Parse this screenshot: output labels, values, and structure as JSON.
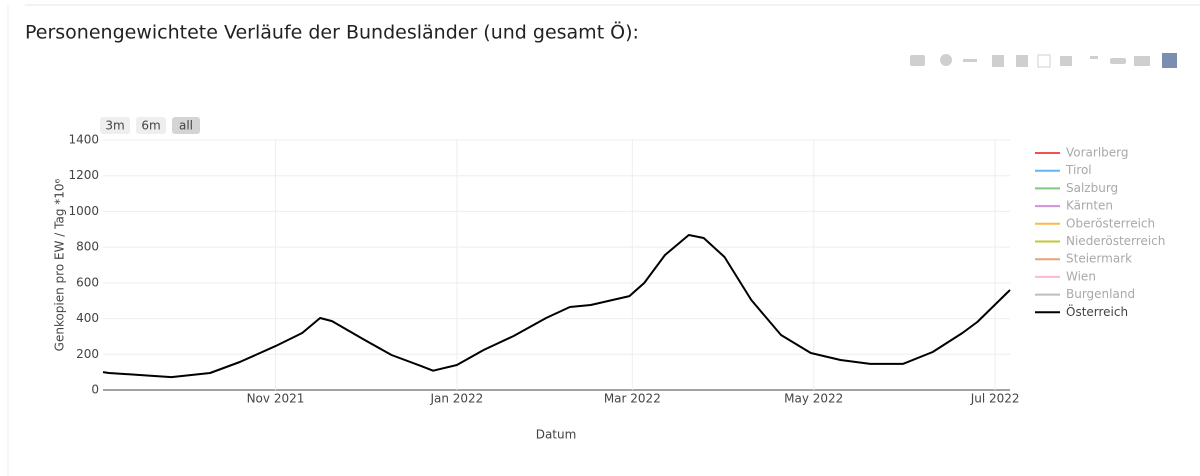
{
  "chart_data": {
    "type": "line",
    "title": "Personengewichtete Verläufe der Bundesländer (und gesamt Ö):",
    "x_label": "Datum",
    "y_label": "Genkopien pro EW / Tag *10⁶",
    "range_buttons": [
      "3m",
      "6m",
      "all"
    ],
    "x": [
      "2021-09-04",
      "2021-09-06",
      "2021-09-20",
      "2021-09-27",
      "2021-10-10",
      "2021-10-20",
      "2021-11-01",
      "2021-11-10",
      "2021-11-16",
      "2021-11-20",
      "2021-12-01",
      "2021-12-10",
      "2021-12-20",
      "2021-12-24",
      "2022-01-01",
      "2022-01-10",
      "2022-01-20",
      "2022-01-31",
      "2022-02-08",
      "2022-02-15",
      "2022-02-28",
      "2022-03-05",
      "2022-03-12",
      "2022-03-20",
      "2022-03-25",
      "2022-04-01",
      "2022-04-10",
      "2022-04-20",
      "2022-04-30",
      "2022-05-10",
      "2022-05-20",
      "2022-05-31",
      "2022-06-10",
      "2022-06-20",
      "2022-06-25",
      "2022-07-06"
    ],
    "xlim": [
      "2021-09-04",
      "2022-07-06"
    ],
    "xticks": [
      {
        "value": "2021-11-01",
        "label": "Nov 2021"
      },
      {
        "value": "2022-01-01",
        "label": "Jan 2022"
      },
      {
        "value": "2022-03-01",
        "label": "Mar 2022"
      },
      {
        "value": "2022-05-01",
        "label": "May 2022"
      },
      {
        "value": "2022-07-01",
        "label": "Jul 2022"
      }
    ],
    "ylim": [
      0,
      1400
    ],
    "yticks": [
      0,
      200,
      400,
      600,
      800,
      1000,
      1200,
      1400
    ],
    "grid": true,
    "legend": "right",
    "series": [
      {
        "name": "Vorarlberg",
        "color": "#ef5350",
        "visible": false
      },
      {
        "name": "Tirol",
        "color": "#64b5f6",
        "visible": false
      },
      {
        "name": "Salzburg",
        "color": "#81c784",
        "visible": false
      },
      {
        "name": "Kärnten",
        "color": "#ce93d8",
        "visible": false
      },
      {
        "name": "Oberösterreich",
        "color": "#ffb74d",
        "visible": false
      },
      {
        "name": "Niederösterreich",
        "color": "#c0ca33",
        "visible": false
      },
      {
        "name": "Steiermark",
        "color": "#e8a07a",
        "visible": false
      },
      {
        "name": "Wien",
        "color": "#f8bbd0",
        "visible": false
      },
      {
        "name": "Burgenland",
        "color": "#bdbdbd",
        "visible": false
      },
      {
        "name": "Österreich",
        "color": "#000000",
        "visible": true,
        "values": [
          100,
          95,
          80,
          72,
          95,
          157,
          246,
          319,
          403,
          386,
          280,
          196,
          134,
          108,
          140,
          224,
          302,
          403,
          465,
          476,
          526,
          599,
          756,
          868,
          851,
          745,
          504,
          308,
          207,
          168,
          146,
          146,
          213,
          319,
          381,
          560
        ]
      }
    ]
  }
}
